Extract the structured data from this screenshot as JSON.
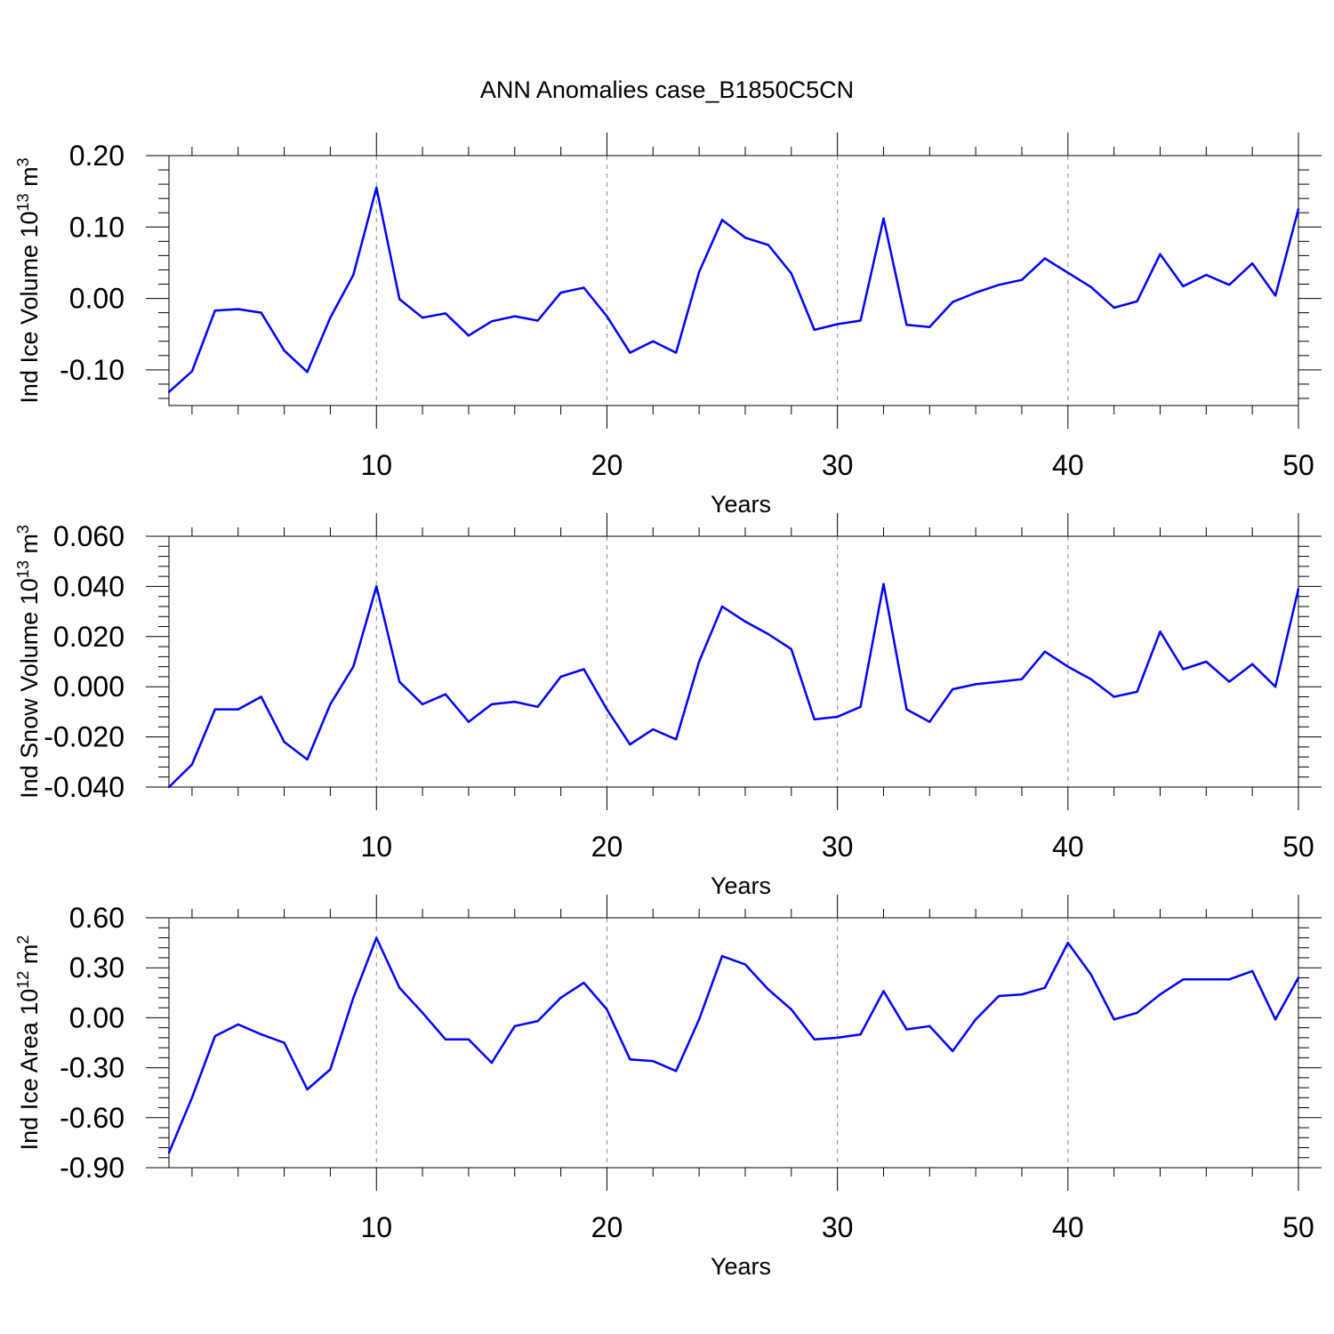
{
  "figure": {
    "title": "ANN Anomalies case_B1850C5CN"
  },
  "style": {
    "line_color": "#0000ff",
    "axis_color": "#000000",
    "grid_color": "#888888"
  },
  "chart_data": [
    {
      "type": "line",
      "title": "",
      "xlabel": "Years",
      "ylabel": {
        "base": "Ind Ice Volume 10",
        "exp1": "13",
        "mid": " m",
        "exp2": "3"
      },
      "xlim": [
        1,
        50
      ],
      "ylim": [
        -0.15,
        0.2
      ],
      "xticks": [
        10,
        20,
        30,
        40,
        50
      ],
      "xtick_labels": [
        "10",
        "20",
        "30",
        "40",
        "50"
      ],
      "yticks": [
        -0.1,
        0.0,
        0.1,
        0.2
      ],
      "ytick_labels": [
        "-0.10",
        "0.00",
        "0.10",
        "0.20"
      ],
      "grid": "vertical dashed at x major ticks",
      "series": [
        {
          "x": [
            1,
            2,
            3,
            4,
            5,
            6,
            7,
            8,
            9,
            10,
            11,
            12,
            13,
            14,
            15,
            16,
            17,
            18,
            19,
            20,
            21,
            22,
            23,
            24,
            25,
            26,
            27,
            28,
            29,
            30,
            31,
            32,
            33,
            34,
            35,
            36,
            37,
            38,
            39,
            40,
            41,
            42,
            43,
            44,
            45,
            46,
            47,
            48,
            49,
            50
          ],
          "values": [
            -0.131,
            -0.102,
            -0.017,
            -0.015,
            -0.02,
            -0.073,
            -0.103,
            -0.027,
            0.033,
            0.155,
            -0.001,
            -0.027,
            -0.021,
            -0.052,
            -0.032,
            -0.025,
            -0.031,
            0.008,
            0.015,
            -0.025,
            -0.076,
            -0.06,
            -0.076,
            0.037,
            0.11,
            0.085,
            0.075,
            0.035,
            -0.044,
            -0.036,
            -0.031,
            0.112,
            -0.037,
            -0.04,
            -0.005,
            0.008,
            0.019,
            0.026,
            0.056,
            0.036,
            0.016,
            -0.013,
            -0.004,
            0.062,
            0.017,
            0.033,
            0.019,
            0.049,
            0.004,
            0.125
          ]
        }
      ]
    },
    {
      "type": "line",
      "title": "",
      "xlabel": "Years",
      "ylabel": {
        "base": "Ind Snow Volume 10",
        "exp1": "13",
        "mid": " m",
        "exp2": "3"
      },
      "xlim": [
        1,
        50
      ],
      "ylim": [
        -0.04,
        0.06
      ],
      "xticks": [
        10,
        20,
        30,
        40,
        50
      ],
      "xtick_labels": [
        "10",
        "20",
        "30",
        "40",
        "50"
      ],
      "yticks": [
        -0.04,
        -0.02,
        0.0,
        0.02,
        0.04,
        0.06
      ],
      "ytick_labels": [
        "-0.040",
        "-0.020",
        "0.000",
        "0.020",
        "0.040",
        "0.060"
      ],
      "grid": "vertical dashed at x major ticks",
      "series": [
        {
          "x": [
            1,
            2,
            3,
            4,
            5,
            6,
            7,
            8,
            9,
            10,
            11,
            12,
            13,
            14,
            15,
            16,
            17,
            18,
            19,
            20,
            21,
            22,
            23,
            24,
            25,
            26,
            27,
            28,
            29,
            30,
            31,
            32,
            33,
            34,
            35,
            36,
            37,
            38,
            39,
            40,
            41,
            42,
            43,
            44,
            45,
            46,
            47,
            48,
            49,
            50
          ],
          "values": [
            -0.04,
            -0.031,
            -0.009,
            -0.009,
            -0.004,
            -0.022,
            -0.029,
            -0.007,
            0.008,
            0.04,
            0.002,
            -0.007,
            -0.003,
            -0.014,
            -0.007,
            -0.006,
            -0.008,
            0.004,
            0.007,
            -0.009,
            -0.023,
            -0.017,
            -0.021,
            0.01,
            0.032,
            0.026,
            0.021,
            0.015,
            -0.013,
            -0.012,
            -0.008,
            0.041,
            -0.009,
            -0.014,
            -0.001,
            0.001,
            0.002,
            0.003,
            0.014,
            0.008,
            0.003,
            -0.004,
            -0.002,
            0.022,
            0.007,
            0.01,
            0.002,
            0.009,
            0.0,
            0.039
          ]
        }
      ]
    },
    {
      "type": "line",
      "title": "",
      "xlabel": "Years",
      "ylabel": {
        "base": "Ind Ice Area 10",
        "exp1": "12",
        "mid": " m",
        "exp2": "2"
      },
      "xlim": [
        1,
        50
      ],
      "ylim": [
        -0.9,
        0.6
      ],
      "xticks": [
        10,
        20,
        30,
        40,
        50
      ],
      "xtick_labels": [
        "10",
        "20",
        "30",
        "40",
        "50"
      ],
      "yticks": [
        -0.9,
        -0.6,
        -0.3,
        0.0,
        0.3,
        0.6
      ],
      "ytick_labels": [
        "-0.90",
        "-0.60",
        "-0.30",
        "0.00",
        "0.30",
        "0.60"
      ],
      "grid": "vertical dashed at x major ticks",
      "series": [
        {
          "x": [
            1,
            2,
            3,
            4,
            5,
            6,
            7,
            8,
            9,
            10,
            11,
            12,
            13,
            14,
            15,
            16,
            17,
            18,
            19,
            20,
            21,
            22,
            23,
            24,
            25,
            26,
            27,
            28,
            29,
            30,
            31,
            32,
            33,
            34,
            35,
            36,
            37,
            38,
            39,
            40,
            41,
            42,
            43,
            44,
            45,
            46,
            47,
            48,
            49,
            50
          ],
          "values": [
            -0.81,
            -0.48,
            -0.11,
            -0.04,
            -0.1,
            -0.15,
            -0.43,
            -0.31,
            0.12,
            0.48,
            0.18,
            0.03,
            -0.13,
            -0.13,
            -0.27,
            -0.05,
            -0.02,
            0.12,
            0.21,
            0.05,
            -0.25,
            -0.26,
            -0.32,
            -0.01,
            0.37,
            0.32,
            0.17,
            0.05,
            -0.13,
            -0.12,
            -0.1,
            0.16,
            -0.07,
            -0.05,
            -0.2,
            -0.01,
            0.13,
            0.14,
            0.18,
            0.45,
            0.26,
            -0.01,
            0.03,
            0.14,
            0.23,
            0.23,
            0.23,
            0.28,
            -0.01,
            0.24
          ]
        }
      ]
    }
  ]
}
